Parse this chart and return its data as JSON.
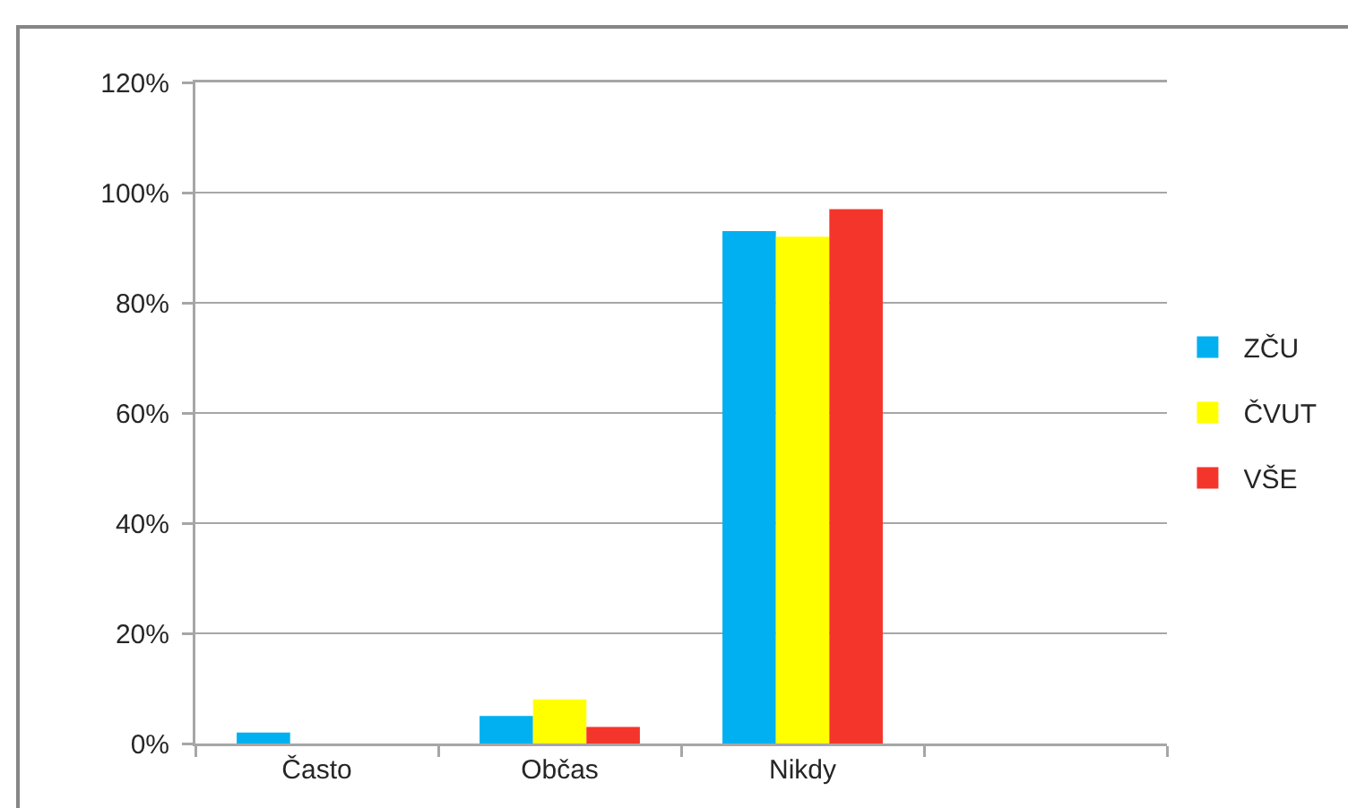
{
  "chart_data": {
    "type": "bar",
    "categories": [
      "Často",
      "Občas",
      "Nikdy",
      null
    ],
    "series": [
      {
        "name": "ZČU",
        "color": "#00b0f0",
        "values": [
          2,
          5,
          93,
          null
        ]
      },
      {
        "name": "ČVUT",
        "color": "#ffff00",
        "values": [
          0,
          8,
          92,
          null
        ]
      },
      {
        "name": "VŠE",
        "color": "#f4352c",
        "values": [
          0,
          3,
          97,
          null
        ]
      }
    ],
    "ylim": [
      0,
      120
    ],
    "yticks": [
      {
        "value": 0,
        "label": "0%"
      },
      {
        "value": 20,
        "label": "20%"
      },
      {
        "value": 40,
        "label": "40%"
      },
      {
        "value": 60,
        "label": "60%"
      },
      {
        "value": 80,
        "label": "80%"
      },
      {
        "value": 100,
        "label": "100%"
      },
      {
        "value": 120,
        "label": "120%"
      }
    ],
    "grid": "y",
    "legend": "right"
  }
}
